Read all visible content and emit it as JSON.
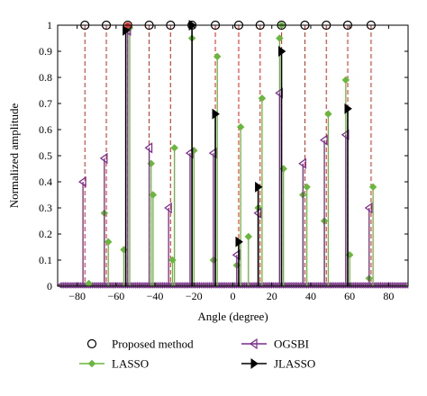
{
  "chart_data": {
    "type": "stem",
    "xlabel": "Angle (degree)",
    "ylabel": "Normalized amplitude",
    "xlim": [
      -90,
      90
    ],
    "ylim": [
      0,
      1
    ],
    "x_ticks": [
      -80,
      -60,
      -40,
      -20,
      0,
      20,
      40,
      60,
      80
    ],
    "y_ticks": [
      0,
      0.1,
      0.2,
      0.3,
      0.4,
      0.5,
      0.6,
      0.7,
      0.8,
      0.9,
      1
    ],
    "x_tick_labels": [
      "−80",
      "−60",
      "−40",
      "−20",
      "0",
      "20",
      "40",
      "60",
      "80"
    ],
    "y_tick_labels": [
      "0",
      "0.1",
      "0.2",
      "0.3",
      "0.4",
      "0.5",
      "0.6",
      "0.7",
      "0.8",
      "0.9",
      "1"
    ],
    "true_angles": [
      -76,
      -65,
      -54,
      -43,
      -32,
      -21,
      -9,
      3,
      14,
      25,
      37,
      48,
      59,
      71
    ],
    "true_angle_line_color": "#e8322a",
    "series": [
      {
        "name": "Proposed method",
        "marker": "circle",
        "color": "#000000",
        "x": [
          -76,
          -65,
          -54,
          -43,
          -32,
          -21,
          -9,
          3,
          14,
          25,
          37,
          48,
          59,
          71
        ],
        "y": [
          1,
          1,
          1,
          1,
          1,
          1,
          1,
          1,
          1,
          1,
          1,
          1,
          1,
          1
        ]
      },
      {
        "name": "LASSO",
        "marker": "diamond",
        "color": "#6ab73d",
        "x": [
          -74,
          -66,
          -64,
          -56,
          -53,
          -42,
          -41,
          -31,
          -30,
          -21,
          -20,
          -10,
          -8,
          2,
          4,
          8,
          15,
          13,
          24,
          26,
          36,
          38,
          47,
          49,
          58,
          60,
          70,
          72
        ],
        "y": [
          0.01,
          0.28,
          0.17,
          0.14,
          0.99,
          0.47,
          0.35,
          0.1,
          0.53,
          0.95,
          0.52,
          0.1,
          0.88,
          0.08,
          0.61,
          0.19,
          0.72,
          0.3,
          0.95,
          0.45,
          0.35,
          0.38,
          0.25,
          0.66,
          0.79,
          0.12,
          0.03,
          0.38
        ]
      },
      {
        "name": "OGSBI",
        "marker": "triangle-left",
        "color": "#7a2a8c",
        "x": [
          -77,
          -66,
          -54,
          -43,
          -33,
          -22,
          -10,
          2,
          13,
          24,
          36,
          47,
          58,
          70
        ],
        "y": [
          0.4,
          0.49,
          0.98,
          0.53,
          0.3,
          0.51,
          0.51,
          0.12,
          0.28,
          0.74,
          0.47,
          0.56,
          0.58,
          0.3
        ]
      },
      {
        "name": "JLASSO",
        "marker": "triangle-right",
        "color": "#000000",
        "x": [
          -55,
          -21,
          -9,
          3,
          13,
          25,
          59
        ],
        "y": [
          0.98,
          1.0,
          0.66,
          0.17,
          0.38,
          0.9,
          0.68
        ]
      }
    ],
    "legend": {
      "placement": "bottom",
      "entries": [
        "Proposed method",
        "LASSO",
        "OGSBI",
        "JLASSO"
      ]
    }
  }
}
